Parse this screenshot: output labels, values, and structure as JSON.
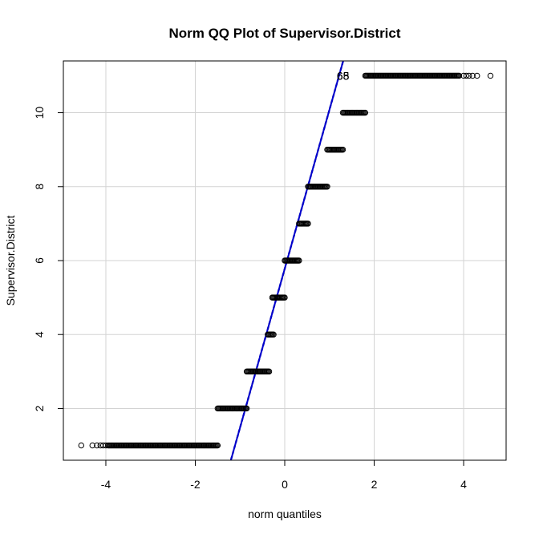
{
  "chart_data": {
    "type": "scatter",
    "title": "Norm QQ Plot of Supervisor.District",
    "xlabel": "norm quantiles",
    "ylabel": "Supervisor.District",
    "xlim": [
      -4.95,
      4.95
    ],
    "ylim": [
      0.6,
      11.4
    ],
    "x_ticks": [
      -4,
      -2,
      0,
      2,
      4
    ],
    "y_ticks": [
      2,
      4,
      6,
      8,
      10
    ],
    "grid": true,
    "colors": {
      "points": "#000000",
      "reference_line": "#0000cc",
      "band": "#1a1aa0",
      "grid": "#d3d3d3"
    },
    "reference_line": {
      "intercept": 5.78,
      "slope": 4.3
    },
    "point_labels": [
      {
        "text": "68",
        "x": 1.55,
        "y": 11
      },
      {
        "text": "65",
        "x": 1.55,
        "y": 11
      }
    ],
    "series": [
      {
        "y": 1,
        "x_min": -4.55,
        "x_max": -1.5,
        "dense_from": -3.95,
        "outliers": [
          -4.55,
          -4.3,
          -4.2,
          -4.12,
          -4.06,
          -4.0
        ]
      },
      {
        "y": 2,
        "x_min": -1.5,
        "x_max": -0.85
      },
      {
        "y": 3,
        "x_min": -0.85,
        "x_max": -0.35
      },
      {
        "y": 4,
        "x_min": -0.38,
        "x_max": -0.25
      },
      {
        "y": 5,
        "x_min": -0.28,
        "x_max": 0.0
      },
      {
        "y": 6,
        "x_min": 0.0,
        "x_max": 0.32
      },
      {
        "y": 7,
        "x_min": 0.32,
        "x_max": 0.52
      },
      {
        "y": 8,
        "x_min": 0.52,
        "x_max": 0.95
      },
      {
        "y": 9,
        "x_min": 0.95,
        "x_max": 1.3
      },
      {
        "y": 10,
        "x_min": 1.3,
        "x_max": 1.8
      },
      {
        "y": 11,
        "x_min": 1.8,
        "x_max": 4.6,
        "dense_to": 3.9,
        "outliers": [
          4.0,
          4.06,
          4.12,
          4.2,
          4.3,
          4.6
        ]
      }
    ]
  }
}
